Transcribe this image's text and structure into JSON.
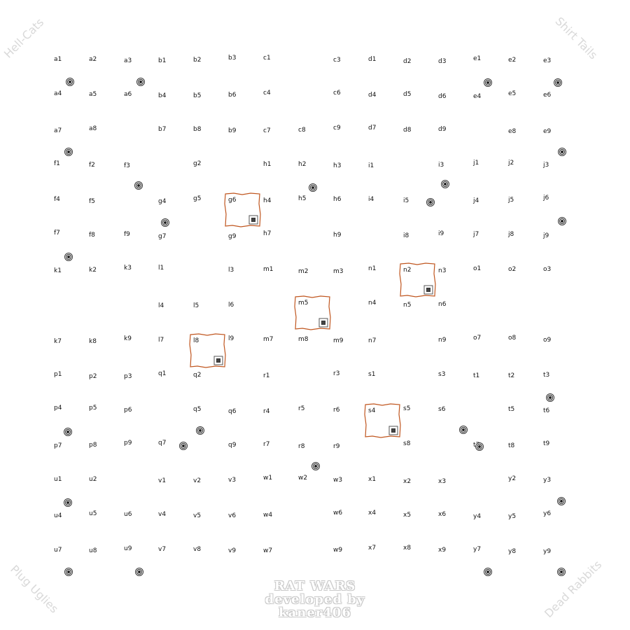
{
  "corners": {
    "top_left": "Hell-Cats",
    "top_right": "Shirt Tails",
    "bottom_left": "Plug Uglies",
    "bottom_right": "Dead Rabbits"
  },
  "credits": {
    "line1": "RAT WARS",
    "line2": "developed by",
    "line3": "kaner406"
  },
  "colors": {
    "room_outline": "#c0561f",
    "label_text": "#111111",
    "corner_text": "#d9d9d9"
  },
  "token_icon": "target-marker-icon",
  "room_icon": "box-marker-icon",
  "cells": [
    "a1",
    "a2",
    "a3",
    "b1",
    "b2",
    "b3",
    "c1",
    "c3",
    "d1",
    "d2",
    "d3",
    "e1",
    "e2",
    "e3",
    "a4",
    "a5",
    "a6",
    "b4",
    "b5",
    "b6",
    "c4",
    "c6",
    "d4",
    "d5",
    "d6",
    "e4",
    "e5",
    "e6",
    "a7",
    "a8",
    "b7",
    "b8",
    "b9",
    "c7",
    "c8",
    "c9",
    "d7",
    "d8",
    "d9",
    "e8",
    "e9",
    "f1",
    "f2",
    "f3",
    "g2",
    "h1",
    "h2",
    "h3",
    "i1",
    "i3",
    "j1",
    "j2",
    "j3",
    "f4",
    "f5",
    "g4",
    "g5",
    "g6",
    "h4",
    "h5",
    "h6",
    "i4",
    "i5",
    "j4",
    "j5",
    "j6",
    "f7",
    "f8",
    "f9",
    "g7",
    "g9",
    "h7",
    "h9",
    "i8",
    "i9",
    "j7",
    "j8",
    "j9",
    "k1",
    "k2",
    "k3",
    "l1",
    "l3",
    "m1",
    "m2",
    "m3",
    "n1",
    "n2",
    "n3",
    "o1",
    "o2",
    "o3",
    "l4",
    "l5",
    "l6",
    "m5",
    "n4",
    "n5",
    "n6",
    "k7",
    "k8",
    "k9",
    "l7",
    "l8",
    "l9",
    "m7",
    "m8",
    "m9",
    "n7",
    "n9",
    "o7",
    "o8",
    "o9",
    "p1",
    "p2",
    "p3",
    "q1",
    "q2",
    "r1",
    "r3",
    "s1",
    "s3",
    "t1",
    "t2",
    "t3",
    "p4",
    "p5",
    "p6",
    "q5",
    "q6",
    "r4",
    "r5",
    "r6",
    "s4",
    "s5",
    "s6",
    "t5",
    "t6",
    "p7",
    "p8",
    "p9",
    "q7",
    "q9",
    "r7",
    "r8",
    "r9",
    "s8",
    "t7",
    "t8",
    "t9",
    "u1",
    "u2",
    "v1",
    "v2",
    "v3",
    "w1",
    "w2",
    "w3",
    "x1",
    "x2",
    "x3",
    "y2",
    "y3",
    "u4",
    "u5",
    "u6",
    "v4",
    "v5",
    "v6",
    "w4",
    "w6",
    "x4",
    "x5",
    "x6",
    "y4",
    "y5",
    "y6",
    "u7",
    "u8",
    "u9",
    "v7",
    "v8",
    "v9",
    "w7",
    "w9",
    "x7",
    "x8",
    "x9",
    "y7",
    "y8",
    "y9"
  ],
  "rooms": [
    "g6",
    "n2",
    "m5",
    "l8",
    "s4"
  ],
  "token_count": 30
}
